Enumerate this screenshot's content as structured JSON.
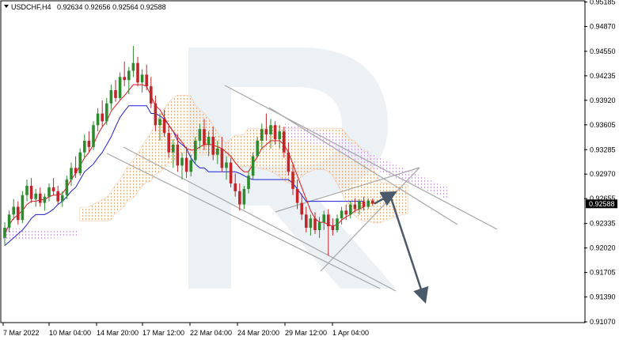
{
  "header": {
    "symbol": "USDCHF,H4",
    "ohlc": "0.92634 0.92656 0.92564 0.92588"
  },
  "colors": {
    "bull": "#2e8b2e",
    "bear": "#c0262a",
    "tenkan": "#e3161b",
    "kijun": "#1f1fd6",
    "cloud_pattern": "#f0a878",
    "cloud_pattern_alt": "#c8a0e0",
    "trend_line": "#a6a6a6",
    "forecast_arrow": "#4a5a6a",
    "price_tag_bg": "#000000",
    "watermark": "#dde5ee"
  },
  "chart_data": {
    "type": "candlestick",
    "symbol": "USDCHF",
    "timeframe": "H4",
    "y_axis": {
      "ticks": [
        "0.95185",
        "0.94870",
        "0.94550",
        "0.94235",
        "0.93920",
        "0.93605",
        "0.93285",
        "0.92970",
        "0.92655",
        "0.92335",
        "0.92020",
        "0.91705",
        "0.91390",
        "0.91070"
      ],
      "range": [
        0.9107,
        0.9519
      ]
    },
    "x_axis": {
      "ticks": [
        "7 Mar 2022",
        "10 Mar 04:00",
        "14 Mar 20:00",
        "17 Mar 12:00",
        "22 Mar 04:00",
        "24 Mar 20:00",
        "29 Mar 12:00",
        "1 Apr 04:00"
      ]
    },
    "current_price": "0.92588",
    "candles": [
      [
        0.9215,
        0.9235,
        0.9205,
        0.9228
      ],
      [
        0.9228,
        0.925,
        0.9222,
        0.9245
      ],
      [
        0.9245,
        0.9265,
        0.9238,
        0.9255
      ],
      [
        0.9255,
        0.9262,
        0.9232,
        0.9238
      ],
      [
        0.9238,
        0.9275,
        0.9234,
        0.927
      ],
      [
        0.927,
        0.929,
        0.9262,
        0.9282
      ],
      [
        0.9282,
        0.9292,
        0.926,
        0.9265
      ],
      [
        0.9265,
        0.9278,
        0.9255,
        0.9272
      ],
      [
        0.9272,
        0.928,
        0.9255,
        0.926
      ],
      [
        0.926,
        0.9272,
        0.925,
        0.9268
      ],
      [
        0.9268,
        0.9285,
        0.9262,
        0.928
      ],
      [
        0.928,
        0.9292,
        0.927,
        0.9275
      ],
      [
        0.9275,
        0.9282,
        0.9258,
        0.9262
      ],
      [
        0.9262,
        0.9275,
        0.9255,
        0.927
      ],
      [
        0.927,
        0.9295,
        0.9265,
        0.929
      ],
      [
        0.929,
        0.9312,
        0.9282,
        0.9305
      ],
      [
        0.9305,
        0.932,
        0.9292,
        0.9298
      ],
      [
        0.9298,
        0.933,
        0.9295,
        0.9325
      ],
      [
        0.9325,
        0.9348,
        0.9318,
        0.934
      ],
      [
        0.934,
        0.9352,
        0.9325,
        0.9332
      ],
      [
        0.9332,
        0.9365,
        0.9328,
        0.936
      ],
      [
        0.936,
        0.9382,
        0.9352,
        0.9375
      ],
      [
        0.9375,
        0.9392,
        0.9358,
        0.9365
      ],
      [
        0.9365,
        0.9395,
        0.936,
        0.9388
      ],
      [
        0.9388,
        0.9412,
        0.938,
        0.9405
      ],
      [
        0.9405,
        0.9418,
        0.939,
        0.9395
      ],
      [
        0.9395,
        0.9428,
        0.9392,
        0.9422
      ],
      [
        0.9422,
        0.9442,
        0.941,
        0.9418
      ],
      [
        0.9418,
        0.9435,
        0.94,
        0.943
      ],
      [
        0.943,
        0.9462,
        0.9422,
        0.944
      ],
      [
        0.944,
        0.9448,
        0.941,
        0.9415
      ],
      [
        0.9415,
        0.9432,
        0.9402,
        0.9425
      ],
      [
        0.9425,
        0.9438,
        0.9405,
        0.941
      ],
      [
        0.941,
        0.9422,
        0.9382,
        0.9388
      ],
      [
        0.9388,
        0.9398,
        0.9352,
        0.936
      ],
      [
        0.936,
        0.9375,
        0.934,
        0.9368
      ],
      [
        0.9368,
        0.938,
        0.9345,
        0.935
      ],
      [
        0.935,
        0.9362,
        0.9318,
        0.9325
      ],
      [
        0.9325,
        0.9342,
        0.9305,
        0.9335
      ],
      [
        0.9335,
        0.9348,
        0.93,
        0.9308
      ],
      [
        0.9308,
        0.9325,
        0.929,
        0.9318
      ],
      [
        0.9318,
        0.9332,
        0.9292,
        0.93
      ],
      [
        0.93,
        0.9322,
        0.9294,
        0.9315
      ],
      [
        0.9315,
        0.9345,
        0.931,
        0.934
      ],
      [
        0.934,
        0.9362,
        0.933,
        0.9355
      ],
      [
        0.9355,
        0.9368,
        0.9328,
        0.9335
      ],
      [
        0.9335,
        0.9352,
        0.932,
        0.9345
      ],
      [
        0.9345,
        0.9358,
        0.9315,
        0.9322
      ],
      [
        0.9322,
        0.934,
        0.931,
        0.933
      ],
      [
        0.933,
        0.9345,
        0.93,
        0.9305
      ],
      [
        0.9305,
        0.932,
        0.929,
        0.9312
      ],
      [
        0.9312,
        0.9318,
        0.928,
        0.9285
      ],
      [
        0.9285,
        0.9298,
        0.9268,
        0.9275
      ],
      [
        0.9275,
        0.9285,
        0.925,
        0.9258
      ],
      [
        0.9258,
        0.9282,
        0.9252,
        0.9278
      ],
      [
        0.9278,
        0.9302,
        0.9272,
        0.9295
      ],
      [
        0.9295,
        0.9325,
        0.929,
        0.932
      ],
      [
        0.932,
        0.9345,
        0.9318,
        0.934
      ],
      [
        0.934,
        0.9362,
        0.933,
        0.9355
      ],
      [
        0.9355,
        0.9375,
        0.934,
        0.9348
      ],
      [
        0.9348,
        0.9368,
        0.933,
        0.936
      ],
      [
        0.936,
        0.9365,
        0.9335,
        0.9342
      ],
      [
        0.9342,
        0.936,
        0.933,
        0.9352
      ],
      [
        0.9352,
        0.9358,
        0.9318,
        0.9325
      ],
      [
        0.9325,
        0.9338,
        0.9295,
        0.93
      ],
      [
        0.93,
        0.9312,
        0.927,
        0.9278
      ],
      [
        0.9278,
        0.929,
        0.9252,
        0.926
      ],
      [
        0.926,
        0.9272,
        0.9238,
        0.9245
      ],
      [
        0.9245,
        0.9255,
        0.9222,
        0.9228
      ],
      [
        0.9228,
        0.9245,
        0.9218,
        0.924
      ],
      [
        0.924,
        0.9248,
        0.922,
        0.9225
      ],
      [
        0.9225,
        0.9242,
        0.9215,
        0.9235
      ],
      [
        0.9235,
        0.925,
        0.9225,
        0.9245
      ],
      [
        0.9245,
        0.9252,
        0.9192,
        0.923
      ],
      [
        0.923,
        0.924,
        0.9218,
        0.9225
      ],
      [
        0.9225,
        0.9245,
        0.9222,
        0.924
      ],
      [
        0.924,
        0.9255,
        0.9232,
        0.925
      ],
      [
        0.925,
        0.9258,
        0.9238,
        0.9245
      ],
      [
        0.9245,
        0.9262,
        0.924,
        0.9258
      ],
      [
        0.9258,
        0.9266,
        0.9248,
        0.9252
      ],
      [
        0.9252,
        0.9265,
        0.9245,
        0.9262
      ],
      [
        0.9262,
        0.9268,
        0.925,
        0.9255
      ],
      [
        0.9255,
        0.9266,
        0.9252,
        0.9263
      ],
      [
        0.9263,
        0.9266,
        0.9256,
        0.9259
      ]
    ],
    "ichimoku": {
      "tenkan": [
        0.922,
        0.9232,
        0.924,
        0.9245,
        0.925,
        0.9258,
        0.9262,
        0.9262,
        0.9264,
        0.9264,
        0.9268,
        0.927,
        0.927,
        0.9272,
        0.928,
        0.929,
        0.9298,
        0.9308,
        0.9318,
        0.9325,
        0.9335,
        0.9348,
        0.9358,
        0.9365,
        0.9378,
        0.9385,
        0.9392,
        0.9398,
        0.9405,
        0.9412,
        0.9412,
        0.9412,
        0.941,
        0.9398,
        0.9385,
        0.938,
        0.937,
        0.936,
        0.9352,
        0.9345,
        0.9338,
        0.933,
        0.9328,
        0.9328,
        0.9332,
        0.9335,
        0.9335,
        0.9335,
        0.9332,
        0.933,
        0.9325,
        0.932,
        0.9312,
        0.9305,
        0.93,
        0.93,
        0.931,
        0.932,
        0.933,
        0.9335,
        0.934,
        0.934,
        0.934,
        0.9335,
        0.9325,
        0.931,
        0.9295,
        0.928,
        0.9265,
        0.925,
        0.924,
        0.9235,
        0.9235,
        0.9232,
        0.923,
        0.9232,
        0.9238,
        0.9242,
        0.9245,
        0.925,
        0.9252,
        0.9255
      ],
      "kijun": [
        0.9205,
        0.921,
        0.9215,
        0.922,
        0.9225,
        0.9232,
        0.924,
        0.9245,
        0.9245,
        0.9245,
        0.9248,
        0.9252,
        0.9258,
        0.9262,
        0.9268,
        0.9275,
        0.928,
        0.929,
        0.93,
        0.9305,
        0.931,
        0.9318,
        0.9325,
        0.9335,
        0.9345,
        0.9358,
        0.937,
        0.9378,
        0.9385,
        0.9385,
        0.9385,
        0.9385,
        0.9385,
        0.9375,
        0.9375,
        0.9372,
        0.9368,
        0.936,
        0.9352,
        0.934,
        0.9335,
        0.933,
        0.9318,
        0.931,
        0.9305,
        0.9305,
        0.93,
        0.93,
        0.93,
        0.93,
        0.93,
        0.93,
        0.93,
        0.9298,
        0.9295,
        0.9292,
        0.929,
        0.929,
        0.929,
        0.929,
        0.929,
        0.929,
        0.929,
        0.929,
        0.929,
        0.9285,
        0.9278,
        0.927,
        0.9262,
        0.9262,
        0.9262,
        0.9262,
        0.9262,
        0.9262,
        0.9262,
        0.9262,
        0.9262,
        0.9262,
        0.9262,
        0.9262,
        0.9262,
        0.9262
      ]
    },
    "forecast": {
      "arrow_up_to": 0.927,
      "arrow_down_to": 0.914
    }
  }
}
